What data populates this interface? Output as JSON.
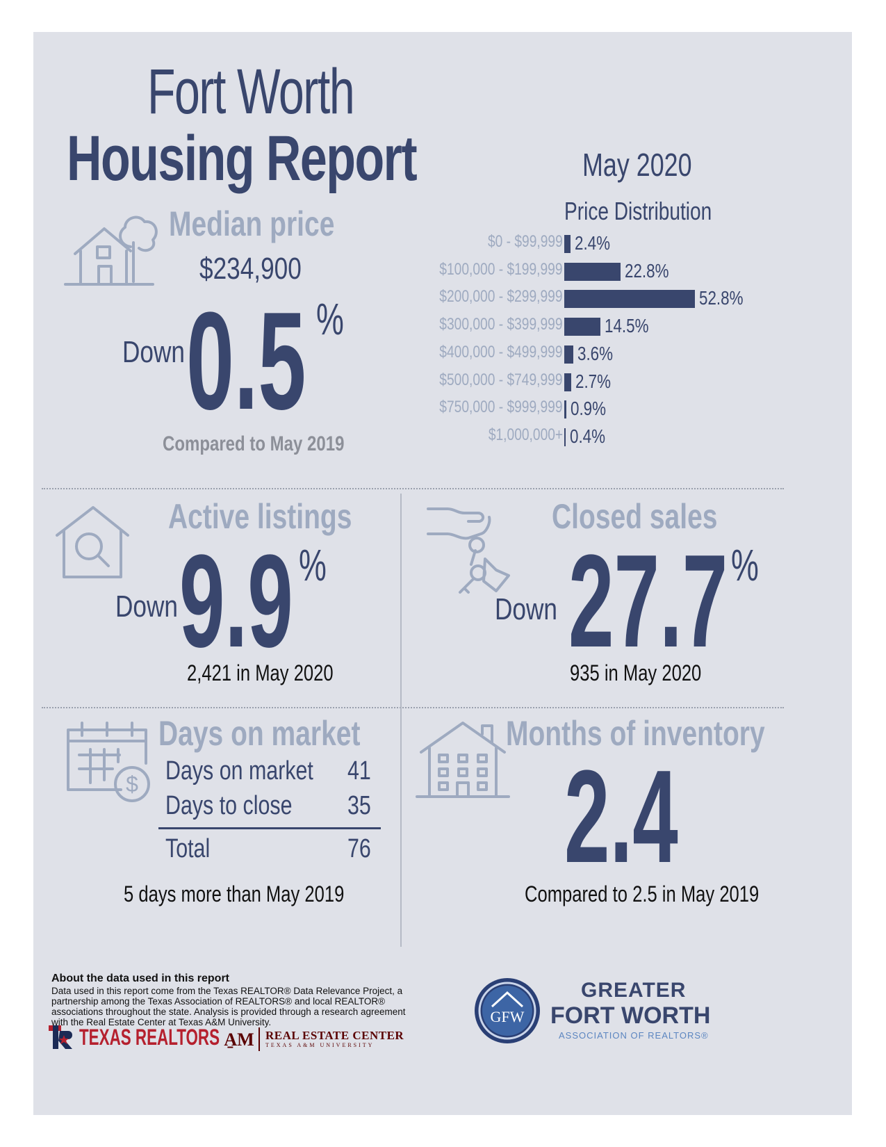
{
  "header": {
    "title_line1": "Fort Worth",
    "title_line2": "Housing Report",
    "month": "May 2020"
  },
  "median_price": {
    "heading": "Median price",
    "value": "$234,900",
    "direction": "Down",
    "change": "0.5",
    "unit": "%",
    "note": "Compared to May 2019"
  },
  "price_distribution": {
    "heading": "Price Distribution",
    "chart_data": {
      "type": "bar",
      "categories": [
        "$0 - $99,999",
        "$100,000 - $199,999",
        "$200,000 - $299,999",
        "$300,000 - $399,999",
        "$400,000 - $499,999",
        "$500,000 - $749,999",
        "$750,000 - $999,999",
        "$1,000,000+"
      ],
      "values": [
        2.4,
        22.8,
        52.8,
        14.5,
        3.6,
        2.7,
        0.9,
        0.4
      ],
      "labels": [
        "2.4%",
        "22.8%",
        "52.8%",
        "14.5%",
        "3.6%",
        "2.7%",
        "0.9%",
        "0.4%"
      ],
      "title": "Price Distribution",
      "orientation": "horizontal"
    }
  },
  "active_listings": {
    "heading": "Active listings",
    "direction": "Down",
    "change": "9.9",
    "unit": "%",
    "note": "2,421 in May 2020"
  },
  "closed_sales": {
    "heading": "Closed sales",
    "direction": "Down",
    "change": "27.7",
    "unit": "%",
    "note": "935 in May 2020"
  },
  "days_on_market": {
    "heading": "Days on market",
    "rows": [
      {
        "label": "Days on market",
        "value": "41"
      },
      {
        "label": "Days to close",
        "value": "35"
      }
    ],
    "total": {
      "label": "Total",
      "value": "76"
    },
    "note": "5 days more than May 2019"
  },
  "months_inventory": {
    "heading": "Months of inventory",
    "value": "2.4",
    "note": "Compared to 2.5 in May 2019"
  },
  "footer": {
    "about_heading": "About the data used in this report",
    "about_text": "Data used in this report come from the Texas REALTOR® Data Relevance Project, a partnership among the Texas Association of REALTORS® and local REALTOR® associations throughout the state. Analysis is provided through a research agreement with the Real Estate Center at Texas A&M University.",
    "texas_realtors": "TEXAS REALTORS",
    "rec_line1": "REAL ESTATE CENTER",
    "rec_line2": "TEXAS A&M UNIVERSITY",
    "gfw_line1": "GREATER",
    "gfw_line2": "FORT WORTH",
    "gfw_line3": "ASSOCIATION OF REALTORS®",
    "gfw_mark": "GFW"
  },
  "colors": {
    "navy": "#39466d",
    "muted": "#9eaac0",
    "panel": "#dfe1e8"
  }
}
